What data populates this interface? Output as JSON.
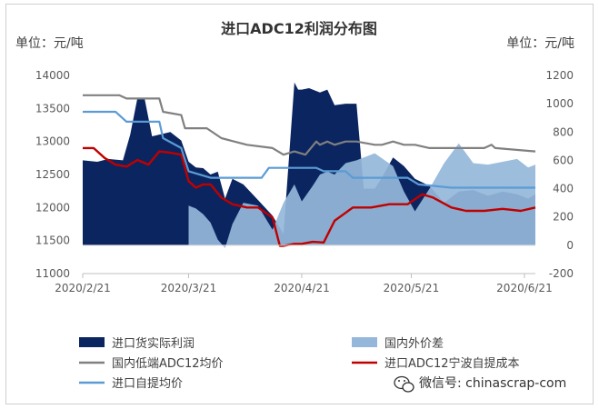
{
  "chart_data": {
    "type": "area",
    "title": "进口ADC12利润分布图",
    "ylabel_left": "单位：元/吨",
    "ylabel_right": "单位：元/吨",
    "ylim_left": [
      11000,
      14000
    ],
    "ylim_right": [
      -200,
      1200
    ],
    "yticks_left": [
      "14000",
      "13500",
      "13000",
      "12500",
      "12000",
      "11500",
      "11000"
    ],
    "yticks_right": [
      "1200",
      "1000",
      "800",
      "600",
      "400",
      "200",
      "0",
      "-200"
    ],
    "x_tick_labels": [
      "2020/2/21",
      "2020/3/21",
      "2020/4/21",
      "2020/5/21",
      "2020/6/21"
    ],
    "x_range": [
      "2020/2/21",
      "2020/6/24"
    ],
    "grid": false,
    "legend_position": "bottom",
    "series": [
      {
        "name": "进口货实际利润",
        "axis": "right",
        "kind": "area",
        "color": "#0b2560",
        "x": [
          "2020/2/21",
          "2020/2/25",
          "2020/2/28",
          "2020/3/3",
          "2020/3/5",
          "2020/3/7",
          "2020/3/9",
          "2020/3/11",
          "2020/3/16",
          "2020/3/19",
          "2020/3/21",
          "2020/3/23",
          "2020/3/25",
          "2020/3/27",
          "2020/3/29",
          "2020/3/31",
          "2020/4/2",
          "2020/4/5",
          "2020/4/9",
          "2020/4/13",
          "2020/4/16",
          "2020/4/19",
          "2020/4/20",
          "2020/4/21",
          "2020/4/23",
          "2020/4/26",
          "2020/4/28",
          "2020/4/30",
          "2020/5/3",
          "2020/5/6",
          "2020/5/8",
          "2020/5/11",
          "2020/5/13",
          "2020/5/16",
          "2020/5/19",
          "2020/5/22",
          "2020/5/26",
          "2020/5/30",
          "2020/6/3",
          "2020/6/7",
          "2020/6/11",
          "2020/6/15",
          "2020/6/19",
          "2020/6/22",
          "2020/6/24"
        ],
        "values": [
          600,
          590,
          610,
          600,
          780,
          1040,
          1030,
          770,
          800,
          740,
          590,
          550,
          545,
          500,
          520,
          330,
          470,
          430,
          320,
          210,
          80,
          1150,
          1100,
          1100,
          1110,
          1080,
          1100,
          990,
          1000,
          1000,
          400,
          400,
          480,
          620,
          560,
          470,
          420,
          300,
          380,
          390,
          350,
          380,
          360,
          330,
          360
        ]
      },
      {
        "name": "国内外价差",
        "axis": "right",
        "kind": "area",
        "color": "#95b7da",
        "x": [
          "2020/3/21",
          "2020/3/23",
          "2020/3/25",
          "2020/3/27",
          "2020/3/29",
          "2020/3/31",
          "2020/4/2",
          "2020/4/5",
          "2020/4/9",
          "2020/4/13",
          "2020/4/16",
          "2020/4/19",
          "2020/4/21",
          "2020/4/24",
          "2020/4/26",
          "2020/4/28",
          "2020/4/30",
          "2020/5/3",
          "2020/5/6",
          "2020/5/11",
          "2020/5/16",
          "2020/5/19",
          "2020/5/22",
          "2020/5/26",
          "2020/5/30",
          "2020/6/3",
          "2020/6/7",
          "2020/6/11",
          "2020/6/15",
          "2020/6/19",
          "2020/6/22",
          "2020/6/24"
        ],
        "values": [
          280,
          260,
          220,
          160,
          40,
          -20,
          150,
          300,
          280,
          110,
          300,
          430,
          310,
          420,
          500,
          520,
          500,
          580,
          600,
          650,
          560,
          380,
          240,
          400,
          580,
          720,
          580,
          570,
          590,
          610,
          550,
          570
        ]
      },
      {
        "name": "国内低端ADC12均价",
        "axis": "left",
        "kind": "line",
        "color": "#808080",
        "x": [
          "2020/2/21",
          "2020/3/2",
          "2020/3/4",
          "2020/3/13",
          "2020/3/14",
          "2020/3/19",
          "2020/3/20",
          "2020/3/26",
          "2020/3/30",
          "2020/4/6",
          "2020/4/13",
          "2020/4/16",
          "2020/4/19",
          "2020/4/22",
          "2020/4/25",
          "2020/4/26",
          "2020/4/28",
          "2020/4/30",
          "2020/5/3",
          "2020/5/6",
          "2020/5/11",
          "2020/5/13",
          "2020/5/16",
          "2020/5/19",
          "2020/5/22",
          "2020/5/26",
          "2020/6/3",
          "2020/6/10",
          "2020/6/12",
          "2020/6/13",
          "2020/6/24"
        ],
        "values": [
          13700,
          13700,
          13650,
          13650,
          13450,
          13400,
          13200,
          13200,
          13050,
          12950,
          12900,
          12800,
          12850,
          12800,
          13000,
          12950,
          13000,
          12950,
          13000,
          13000,
          12950,
          12950,
          13000,
          12950,
          12950,
          12900,
          12900,
          12900,
          12950,
          12900,
          12850
        ]
      },
      {
        "name": "进口ADC12宁波自提成本",
        "axis": "left",
        "kind": "line",
        "color": "#c00000",
        "x": [
          "2020/2/21",
          "2020/2/24",
          "2020/2/27",
          "2020/3/1",
          "2020/3/4",
          "2020/3/7",
          "2020/3/10",
          "2020/3/13",
          "2020/3/16",
          "2020/3/19",
          "2020/3/21",
          "2020/3/23",
          "2020/3/25",
          "2020/3/27",
          "2020/3/30",
          "2020/4/2",
          "2020/4/6",
          "2020/4/9",
          "2020/4/13",
          "2020/4/15",
          "2020/4/16",
          "2020/4/19",
          "2020/4/21",
          "2020/4/24",
          "2020/4/27",
          "2020/4/30",
          "2020/5/5",
          "2020/5/10",
          "2020/5/15",
          "2020/5/20",
          "2020/5/24",
          "2020/5/27",
          "2020/6/1",
          "2020/6/5",
          "2020/6/10",
          "2020/6/15",
          "2020/6/20",
          "2020/6/24"
        ],
        "values": [
          12900,
          12900,
          12750,
          12650,
          12620,
          12720,
          12650,
          12850,
          12830,
          12800,
          12400,
          12300,
          12350,
          12350,
          12150,
          12050,
          12000,
          12000,
          11850,
          11420,
          11420,
          11450,
          11450,
          11480,
          11470,
          11800,
          12000,
          12000,
          12050,
          12050,
          12200,
          12150,
          12000,
          11950,
          11950,
          11980,
          11950,
          12000
        ]
      },
      {
        "name": "进口自提均价",
        "axis": "left",
        "kind": "line",
        "color": "#5b9bd5",
        "x": [
          "2020/2/21",
          "2020/3/1",
          "2020/3/4",
          "2020/3/13",
          "2020/3/14",
          "2020/3/19",
          "2020/3/21",
          "2020/3/27",
          "2020/3/29",
          "2020/4/10",
          "2020/4/12",
          "2020/4/25",
          "2020/4/27",
          "2020/5/3",
          "2020/5/5",
          "2020/5/20",
          "2020/5/23",
          "2020/6/1",
          "2020/6/24"
        ],
        "values": [
          13450,
          13450,
          13300,
          13300,
          13050,
          12900,
          12550,
          12450,
          12450,
          12450,
          12600,
          12600,
          12550,
          12550,
          12450,
          12450,
          12350,
          12300,
          12300
        ]
      }
    ],
    "legend": [
      "进口货实际利润",
      "国内外价差",
      "国内低端ADC12均价",
      "进口ADC12宁波自提成本",
      "进口自提均价"
    ]
  },
  "watermark": {
    "text": "微信号: chinascrap-com",
    "icon": "wechat-icon"
  }
}
